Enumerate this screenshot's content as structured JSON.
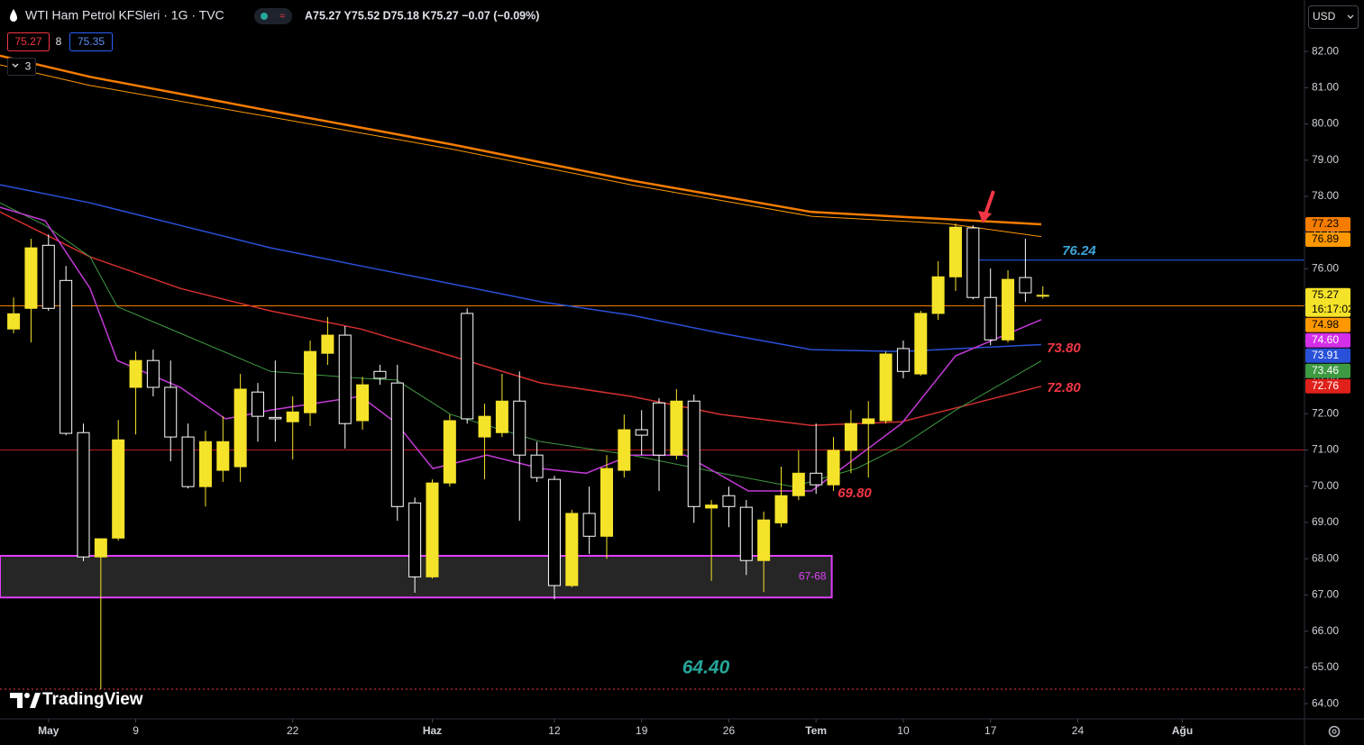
{
  "header": {
    "symbol": "WTI Ham Petrol KFSleri · 1G · TVC",
    "ohlc": "A75.27 Y75.52 D75.18 K75.27 −0.07 (−0.09%)",
    "sell": "75.27",
    "spread": "8",
    "buy": "75.35",
    "indicators": "3",
    "currency": "USD"
  },
  "branding": "TradingView",
  "chart_data": {
    "type": "candlestick",
    "x": [
      0,
      1,
      2,
      3,
      4,
      5,
      6,
      7,
      8,
      9,
      10,
      11,
      12,
      13,
      14,
      15,
      16,
      17,
      18,
      19,
      20,
      21,
      22,
      23,
      24,
      25,
      26,
      27,
      28,
      29,
      30,
      31,
      32,
      33,
      34,
      35,
      36,
      37,
      38,
      39,
      40,
      41,
      42,
      43,
      44,
      45,
      46,
      47,
      48,
      49,
      50,
      51,
      52,
      53,
      54,
      55,
      56,
      57,
      58,
      59
    ],
    "open": [
      74.34,
      74.91,
      76.65,
      75.68,
      71.48,
      68.05,
      68.57,
      72.73,
      73.47,
      72.73,
      71.36,
      69.99,
      70.44,
      70.54,
      72.6,
      71.9,
      71.78,
      72.03,
      73.67,
      74.17,
      71.81,
      73.17,
      72.85,
      69.54,
      67.5,
      70.09,
      74.77,
      71.36,
      71.48,
      72.35,
      70.86,
      70.19,
      67.26,
      69.25,
      68.62,
      70.44,
      71.56,
      72.3,
      70.86,
      72.35,
      69.4,
      69.74,
      69.42,
      67.95,
      68.99,
      69.74,
      70.36,
      70.04,
      70.99,
      71.73,
      71.81,
      73.8,
      73.1,
      74.77,
      75.78,
      77.13,
      75.21,
      74.04,
      75.76,
      75.27
    ],
    "high": [
      75.21,
      76.83,
      76.95,
      76.08,
      71.73,
      68.55,
      71.83,
      73.72,
      73.77,
      73.47,
      71.73,
      71.53,
      71.93,
      73.1,
      72.85,
      73.47,
      72.48,
      74.02,
      74.67,
      74.42,
      73.02,
      73.35,
      73.35,
      69.69,
      70.19,
      71.98,
      74.91,
      72.28,
      73.1,
      73.17,
      71.23,
      70.29,
      69.35,
      69.99,
      70.86,
      71.98,
      72.1,
      72.43,
      72.68,
      72.53,
      69.62,
      69.99,
      69.62,
      69.3,
      70.54,
      70.99,
      71.73,
      71.36,
      72.1,
      72.35,
      73.72,
      74.02,
      74.84,
      76.21,
      77.25,
      77.2,
      76.01,
      75.96,
      76.83,
      75.52
    ],
    "low": [
      74.22,
      73.97,
      74.84,
      71.41,
      67.93,
      64.4,
      68.5,
      71.43,
      72.48,
      70.69,
      69.94,
      69.44,
      70.12,
      70.12,
      71.23,
      71.23,
      70.74,
      71.66,
      73.35,
      71.04,
      71.56,
      72.8,
      69.05,
      67.06,
      67.45,
      69.99,
      71.73,
      70.19,
      71.36,
      69.05,
      70.12,
      66.88,
      67.21,
      68.13,
      68.0,
      70.24,
      70.86,
      69.87,
      70.74,
      68.99,
      67.39,
      68.87,
      67.55,
      67.08,
      68.87,
      69.62,
      69.79,
      69.87,
      70.36,
      70.24,
      71.73,
      72.98,
      73.05,
      74.59,
      75.39,
      75.16,
      73.89,
      73.97,
      75.09,
      75.18
    ],
    "close": [
      74.76,
      76.58,
      74.91,
      71.46,
      68.05,
      68.55,
      71.28,
      73.47,
      72.73,
      71.36,
      69.99,
      71.23,
      71.23,
      72.68,
      71.93,
      71.86,
      72.05,
      73.72,
      74.17,
      71.73,
      72.8,
      72.98,
      69.44,
      67.5,
      70.09,
      71.81,
      71.86,
      71.93,
      72.35,
      70.86,
      70.24,
      67.26,
      69.25,
      68.62,
      70.49,
      71.56,
      71.41,
      70.86,
      72.35,
      69.44,
      69.48,
      69.44,
      67.95,
      69.07,
      69.74,
      70.36,
      70.04,
      70.99,
      71.73,
      71.86,
      73.65,
      73.17,
      74.77,
      75.78,
      77.15,
      75.21,
      74.04,
      75.71,
      75.34,
      75.27
    ],
    "up_color": "#f5e32a",
    "down_color": "#000000",
    "down_border": "#ffffff",
    "xlim": [
      -0.78,
      74
    ],
    "ylim": [
      63.58,
      83.42
    ],
    "xticks": [
      {
        "value": 2,
        "label": "May"
      },
      {
        "value": 7,
        "label": "9"
      },
      {
        "value": 16,
        "label": "22"
      },
      {
        "value": 24,
        "label": "Haz"
      },
      {
        "value": 31,
        "label": "12"
      },
      {
        "value": 36,
        "label": "19"
      },
      {
        "value": 41,
        "label": "26"
      },
      {
        "value": 46,
        "label": "Tem"
      },
      {
        "value": 51,
        "label": "10"
      },
      {
        "value": 56,
        "label": "17"
      },
      {
        "value": 61,
        "label": "24"
      },
      {
        "value": 67,
        "label": "Ağu"
      }
    ],
    "yticks": [
      {
        "value": 64,
        "label": "64.00"
      },
      {
        "value": 65,
        "label": "65.00"
      },
      {
        "value": 66,
        "label": "66.00"
      },
      {
        "value": 67,
        "label": "67.00"
      },
      {
        "value": 68,
        "label": "68.00"
      },
      {
        "value": 69,
        "label": "69.00"
      },
      {
        "value": 70,
        "label": "70.00"
      },
      {
        "value": 71,
        "label": "71.00"
      },
      {
        "value": 72,
        "label": "72.00"
      },
      {
        "value": 73,
        "label": "73.00"
      },
      {
        "value": 74,
        "label": "74.00"
      },
      {
        "value": 75,
        "label": "75.00"
      },
      {
        "value": 76,
        "label": "76.00"
      },
      {
        "value": 77,
        "label": "77.00"
      },
      {
        "value": 78,
        "label": "78.00"
      },
      {
        "value": 79,
        "label": "79.00"
      },
      {
        "value": 80,
        "label": "80.00"
      },
      {
        "value": 81,
        "label": "81.00"
      },
      {
        "value": 82,
        "label": "82.00"
      }
    ],
    "grid": false,
    "overlays": [
      {
        "color": "#f57c00",
        "width": 2.5,
        "x": [
          -0.78,
          4.39,
          14.73,
          25.06,
          35.4,
          45.74,
          58.91
        ],
        "values": [
          81.88,
          81.3,
          80.36,
          79.44,
          78.44,
          77.57,
          77.23
        ]
      },
      {
        "color": "#ff9800",
        "width": 1,
        "x": [
          -0.78,
          4.39,
          14.73,
          25.06,
          35.4,
          45.74,
          53.49,
          58.91
        ],
        "values": [
          81.63,
          81.06,
          80.19,
          79.31,
          78.32,
          77.45,
          77.25,
          76.89
        ]
      },
      {
        "color": "#2950d8",
        "width": 1.5,
        "x": [
          -0.78,
          4.39,
          9.56,
          14.73,
          19.9,
          25.06,
          30.23,
          35.4,
          40.57,
          45.74,
          50.9,
          58.91
        ],
        "values": [
          78.32,
          77.82,
          77.2,
          76.58,
          76.08,
          75.59,
          75.09,
          74.72,
          74.22,
          73.77,
          73.72,
          73.91
        ]
      },
      {
        "color": "#d32f2f",
        "width": 1.5,
        "x": [
          -0.78,
          1.81,
          4.39,
          9.56,
          14.73,
          19.9,
          25.06,
          30.23,
          35.4,
          40.57,
          45.74,
          50.9,
          58.91
        ],
        "values": [
          77.57,
          76.95,
          76.33,
          75.46,
          74.84,
          74.34,
          73.6,
          72.85,
          72.48,
          71.98,
          71.68,
          71.78,
          72.76
        ]
      },
      {
        "color": "#3e9a42",
        "width": 1,
        "x": [
          -0.78,
          1.81,
          4.39,
          5.94,
          9.56,
          14.73,
          19.9,
          21.96,
          25.06,
          30.23,
          35.4,
          40.57,
          44.7,
          48.32,
          50.9,
          54.0,
          58.91
        ],
        "values": [
          77.82,
          77.2,
          76.33,
          74.96,
          74.22,
          73.17,
          72.98,
          72.93,
          71.98,
          71.23,
          70.86,
          70.36,
          69.99,
          70.49,
          71.11,
          72.1,
          73.46
        ]
      },
      {
        "color": "#c23ad6",
        "width": 1.5,
        "x": [
          -0.78,
          1.81,
          4.39,
          5.94,
          9.56,
          12.14,
          14.73,
          19.9,
          21.96,
          24.03,
          27.13,
          30.23,
          32.82,
          35.4,
          38.5,
          42.12,
          45.74,
          50.9,
          54.0,
          58.91
        ],
        "values": [
          77.7,
          77.33,
          75.46,
          73.47,
          72.73,
          71.86,
          72.1,
          72.48,
          71.73,
          70.49,
          70.86,
          70.49,
          70.36,
          70.86,
          70.86,
          69.87,
          69.87,
          71.73,
          73.6,
          74.6
        ]
      }
    ],
    "levels": [
      {
        "value": 74.98,
        "color": "#f57c00",
        "from": -0.78
      },
      {
        "value": 76.24,
        "color": "#2962ff",
        "from": 54.8
      },
      {
        "value": 71.0,
        "color": "#b71c1c",
        "from": -0.78
      },
      {
        "value": 64.4,
        "color": "#f23645",
        "from": -0.78,
        "dotted": true
      }
    ],
    "zone": {
      "low": 66.93,
      "high": 68.08,
      "from": -0.78,
      "to": 46.9,
      "label": "67-68",
      "color": "#e040fb"
    },
    "annotations": [
      {
        "value": 76.24,
        "label": "76.24",
        "color": "#3fa3d8"
      },
      {
        "value": 73.8,
        "label": "73.80",
        "color": "#f23645"
      },
      {
        "value": 72.8,
        "label": "72.80",
        "color": "#f23645"
      },
      {
        "value": 69.8,
        "label": "69.80",
        "color": "#f23645"
      },
      {
        "value": 64.4,
        "label": "64.40",
        "color": "#26a69a"
      }
    ],
    "price_labels": [
      {
        "value": 77.23,
        "label": "77.23",
        "color": "#f57c00",
        "text_color": "#000000"
      },
      {
        "value": 76.89,
        "label": "76.89",
        "color": "#ff9800",
        "text_color": "#000000"
      },
      {
        "value": 75.27,
        "label": "75.27",
        "sub": "16:17:02",
        "color": "#f5e32a",
        "text_color": "#000000"
      },
      {
        "value": 74.98,
        "label": "74.98",
        "color": "#ff9800",
        "text_color": "#000000"
      },
      {
        "value": 74.6,
        "label": "74.60",
        "color": "#d42fe8",
        "text_color": "#ffffff"
      },
      {
        "value": 73.91,
        "label": "73.91",
        "color": "#2950d8",
        "text_color": "#ffffff"
      },
      {
        "value": 73.46,
        "label": "73.46",
        "color": "#3e9a42",
        "text_color": "#ffffff"
      },
      {
        "value": 72.76,
        "label": "72.76",
        "color": "#e0201b",
        "text_color": "#ffffff"
      }
    ]
  }
}
